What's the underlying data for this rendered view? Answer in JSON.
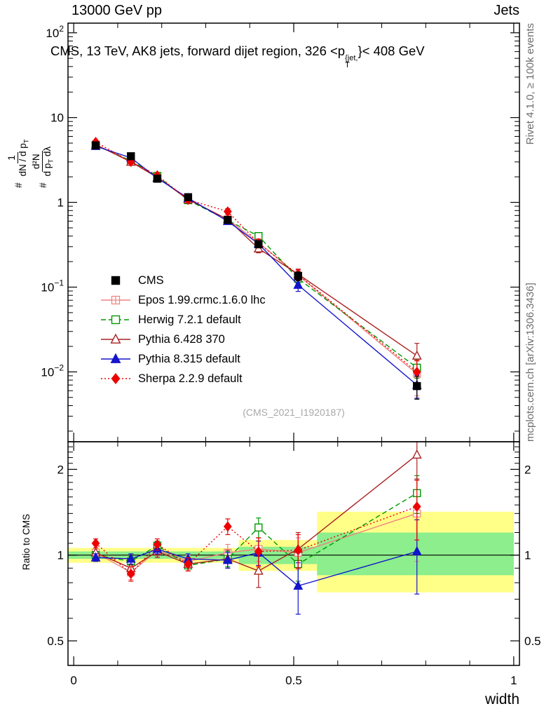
{
  "header": {
    "left": "13000 GeV pp",
    "right": "Jets"
  },
  "title": {
    "pre": "CMS, 13 TeV, AK8 jets, forward dijet region, 326 <p",
    "sup": "{jet,",
    "sub": "T",
    "post": "}< 408 GeV"
  },
  "side_labels": {
    "rivet": "Rivet 4.1.0, ≥ 100k events",
    "mcplots": "mcplots.cern.ch [arXiv:1306.3436]"
  },
  "watermark": "(CMS_2021_I1920187)",
  "ylabel_top": {
    "hash1": "#",
    "frac1_num": "1",
    "frac1_den_pre": "dN / d p",
    "frac1_den_sub": "T",
    "hash2": "#",
    "frac2_num": "d²N",
    "frac2_den_pre": "d p",
    "frac2_den_sub": "T",
    "frac2_den_post": " dλ"
  },
  "ratio_ylabel": "Ratio to CMS",
  "xlabel": "width",
  "chart_data": {
    "type": "line",
    "title": "CMS, 13 TeV, AK8 jets, forward dijet region, 326 < pT^{jet} < 408 GeV",
    "xlabel": "width",
    "ylabel_top": "# 1/(dN/dp_T) d²N/(dp_T dλ)",
    "ylabel_ratio": "Ratio to CMS",
    "xlim": [
      -0.013,
      1.013
    ],
    "x": [
      0.05,
      0.13,
      0.19,
      0.26,
      0.35,
      0.42,
      0.51,
      0.78
    ],
    "xticks": [
      {
        "v": 0,
        "label": "0"
      },
      {
        "v": 0.5,
        "label": "0.5"
      },
      {
        "v": 1,
        "label": "1"
      }
    ],
    "top": {
      "scale": "log",
      "ylim": [
        0.0015,
        130
      ],
      "yticks": [
        {
          "v": 100,
          "base": "10",
          "exp": "2"
        },
        {
          "v": 10,
          "label": "10"
        },
        {
          "v": 1,
          "label": "1"
        },
        {
          "v": 0.1,
          "base": "10",
          "exp": "−1"
        },
        {
          "v": 0.01,
          "base": "10",
          "exp": "−2"
        }
      ]
    },
    "ratio": {
      "scale": "log",
      "ylim": [
        0.41,
        2.5
      ],
      "ref": 1,
      "yticks": [
        {
          "v": 0.5,
          "label": "0.5"
        },
        {
          "v": 1,
          "label": "1"
        },
        {
          "v": 2,
          "label": "2"
        }
      ],
      "bands": [
        {
          "x0": -0.013,
          "x1": 0.375,
          "yellow": [
            0.94,
            1.06
          ],
          "green": [
            0.97,
            1.03
          ]
        },
        {
          "x0": 0.375,
          "x1": 0.553,
          "yellow": [
            0.88,
            1.13
          ],
          "green": [
            0.93,
            1.07
          ]
        },
        {
          "x0": 0.553,
          "x1": 1.0,
          "yellow": [
            0.74,
            1.42
          ],
          "green": [
            0.85,
            1.2
          ]
        }
      ]
    },
    "cms": {
      "id": "cms",
      "name": "CMS",
      "color": "#000000",
      "marker": "square",
      "filled": true,
      "y": [
        4.7,
        3.5,
        1.9,
        1.15,
        0.62,
        0.32,
        0.135,
        0.0068
      ],
      "yerr_rel": [
        0.04,
        0.04,
        0.04,
        0.05,
        0.06,
        0.09,
        0.12,
        0.3
      ]
    },
    "series": [
      {
        "id": "epos",
        "name": "Epos 1.99.crmc.1.6.0 lhc",
        "color": "#f08080",
        "line": "solid",
        "marker": "square-plus",
        "filled": false,
        "y": [
          4.8,
          3.05,
          1.98,
          1.09,
          0.63,
          0.335,
          0.138,
          0.0095
        ],
        "ratio": [
          1.02,
          0.87,
          1.04,
          0.95,
          1.02,
          1.05,
          1.02,
          1.4
        ],
        "ratio_err": [
          0.04,
          0.05,
          0.05,
          0.05,
          0.07,
          0.1,
          0.13,
          0.45
        ]
      },
      {
        "id": "herwig",
        "name": "Herwig 7.2.1 default",
        "color": "#009900",
        "line": "dash",
        "marker": "square",
        "filled": false,
        "y": [
          4.72,
          3.1,
          2.05,
          1.06,
          0.615,
          0.4,
          0.126,
          0.0112
        ],
        "ratio": [
          1.0,
          0.95,
          1.08,
          0.92,
          0.97,
          1.25,
          0.93,
          1.65
        ],
        "ratio_err": [
          0.03,
          0.04,
          0.04,
          0.04,
          0.06,
          0.1,
          0.12,
          0.25
        ]
      },
      {
        "id": "pythia6",
        "name": "Pythia 6.428 370",
        "color": "#aa2222",
        "line": "solid",
        "marker": "triangle",
        "filled": false,
        "y": [
          4.8,
          3.0,
          1.97,
          1.08,
          0.63,
          0.285,
          0.142,
          0.0155
        ],
        "ratio": [
          1.02,
          0.9,
          1.03,
          0.93,
          0.97,
          0.88,
          1.05,
          2.25
        ],
        "ratio_err": [
          0.04,
          0.05,
          0.05,
          0.05,
          0.07,
          0.11,
          0.15,
          0.4
        ]
      },
      {
        "id": "pythia8",
        "name": "Pythia 8.315 default",
        "color": "#1414cc",
        "line": "solid",
        "marker": "triangle",
        "filled": true,
        "y": [
          4.6,
          3.35,
          1.93,
          1.12,
          0.6,
          0.325,
          0.106,
          0.007
        ],
        "ratio": [
          0.98,
          0.97,
          1.05,
          0.97,
          0.96,
          1.02,
          0.78,
          1.03
        ],
        "ratio_err": [
          0.03,
          0.04,
          0.04,
          0.04,
          0.06,
          0.1,
          0.16,
          0.3
        ]
      },
      {
        "id": "sherpa",
        "name": "Sherpa 2.2.9 default",
        "color": "#ee0000",
        "line": "dot",
        "marker": "diamond",
        "filled": true,
        "y": [
          5.15,
          3.0,
          2.08,
          1.07,
          0.78,
          0.33,
          0.14,
          0.01
        ],
        "ratio": [
          1.1,
          0.86,
          1.09,
          0.93,
          1.26,
          1.03,
          1.04,
          1.48
        ],
        "ratio_err": [
          0.04,
          0.05,
          0.05,
          0.05,
          0.08,
          0.12,
          0.14,
          0.35
        ]
      }
    ],
    "colors": {
      "band_yellow": "#ffff88",
      "band_green": "#8cee8c",
      "frame": "#000000",
      "ref_line": "#000000",
      "watermark": "#a9a9a9"
    },
    "legend_position": "inside-left-lower"
  }
}
